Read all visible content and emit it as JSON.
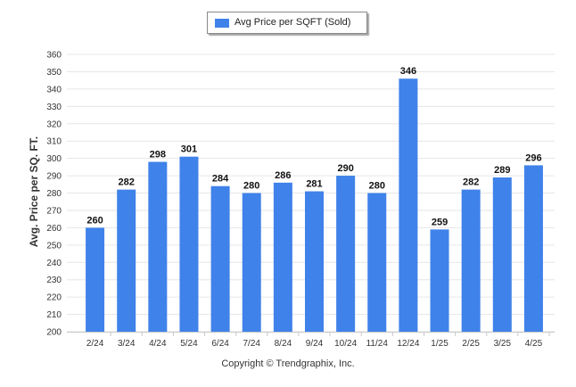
{
  "chart_data": {
    "type": "bar",
    "categories": [
      "2/24",
      "3/24",
      "4/24",
      "5/24",
      "6/24",
      "7/24",
      "8/24",
      "9/24",
      "10/24",
      "11/24",
      "12/24",
      "1/25",
      "2/25",
      "3/25",
      "4/25"
    ],
    "series": [
      {
        "name": "Avg Price per SQFT (Sold)",
        "values": [
          260,
          282,
          298,
          301,
          284,
          280,
          286,
          281,
          290,
          280,
          346,
          259,
          282,
          289,
          296
        ]
      }
    ],
    "title": "",
    "xlabel": "",
    "ylabel": "Avg. Price per SQ. FT.",
    "ylim": [
      200,
      360
    ],
    "yticks": [
      200,
      210,
      220,
      230,
      240,
      250,
      260,
      270,
      280,
      290,
      300,
      310,
      320,
      330,
      340,
      350,
      360
    ],
    "grid": true,
    "legend": "top-center",
    "bar_color": "#3f82ea",
    "footer": "Copyright © Trendgraphix, Inc."
  }
}
